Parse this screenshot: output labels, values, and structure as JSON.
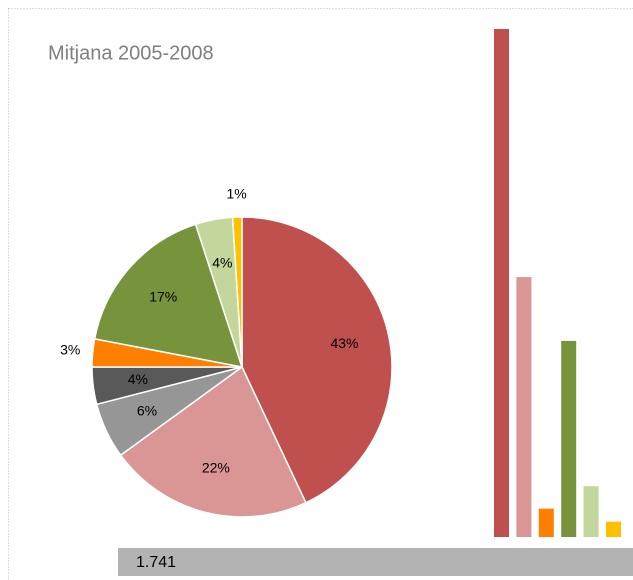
{
  "chart_data": [
    {
      "type": "pie",
      "title": "Mitjana 2005-2008",
      "values": [
        43,
        22,
        6,
        4,
        3,
        17,
        4,
        1
      ],
      "value_labels": [
        "43%",
        "22%",
        "6%",
        "4%",
        "3%",
        "17%",
        "4%",
        "1%"
      ],
      "colors": [
        "#c0504d",
        "#d99694",
        "#969696",
        "#595959",
        "#ff8000",
        "#77933c",
        "#c3d69b",
        "#ffc000"
      ]
    },
    {
      "type": "bar",
      "values": [
        43,
        22,
        2.4,
        16.6,
        4.3,
        1.3
      ],
      "colors": [
        "#c0504d",
        "#d99694",
        "#ff8000",
        "#77933c",
        "#c3d69b",
        "#ffc000"
      ],
      "ylim": [
        0,
        43
      ]
    }
  ],
  "footer": {
    "label": "1.741"
  }
}
